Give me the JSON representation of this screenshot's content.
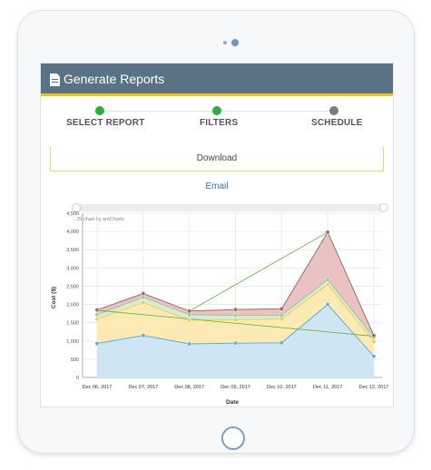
{
  "app": {
    "title": "Generate Reports",
    "title_icon": "document-icon"
  },
  "steps": [
    {
      "label": "SELECT REPORT",
      "status": "complete",
      "color": "#2eaf3d"
    },
    {
      "label": "FILTERS",
      "status": "complete",
      "color": "#2eaf3d"
    },
    {
      "label": "SCHEDULE",
      "status": "pending",
      "color": "#7b7b7b"
    }
  ],
  "actions": {
    "download_label": "Download",
    "email_label": "Email"
  },
  "chart_credit": "JS chart by amCharts",
  "chart_data": {
    "type": "area",
    "stacked": true,
    "xlabel": "Date",
    "ylabel": "Cost ($)",
    "ylim": [
      0,
      4500
    ],
    "yticks": [
      "0",
      "500",
      "1,000",
      "1,500",
      "2,000",
      "2,500",
      "3,000",
      "3,500",
      "4,000",
      "4,500"
    ],
    "categories": [
      "Dec 06, 2017",
      "Dec 07, 2017",
      "Dec 08, 2017",
      "Dec 09, 2017",
      "Dec 10, 2017",
      "Dec 11, 2017",
      "Dec 12, 2017"
    ],
    "series": [
      {
        "color": "#5bb0d9",
        "fill": "#cfe5f3",
        "values": [
          930,
          1150,
          920,
          940,
          950,
          2000,
          580
        ]
      },
      {
        "color": "#f0d14a",
        "fill": "#fbeab3",
        "values": [
          1600,
          2050,
          1570,
          1580,
          1600,
          2550,
          980
        ]
      },
      {
        "color": "#9bc79b",
        "fill": "#d9ebd3",
        "values": [
          1720,
          2200,
          1720,
          1700,
          1700,
          2680,
          1100
        ]
      },
      {
        "color": "#a36a5e",
        "fill": "#ebc2c2",
        "values": [
          1850,
          2300,
          1820,
          1860,
          1880,
          3980,
          1150
        ]
      }
    ],
    "trend_lines": [
      {
        "color": "#5cab33",
        "from": [
          2,
          1820
        ],
        "to": [
          5,
          3980
        ]
      },
      {
        "color": "#5cab33",
        "from": [
          0,
          1840
        ],
        "to": [
          6,
          1130
        ]
      }
    ],
    "grid": true,
    "scrollbar": true
  }
}
